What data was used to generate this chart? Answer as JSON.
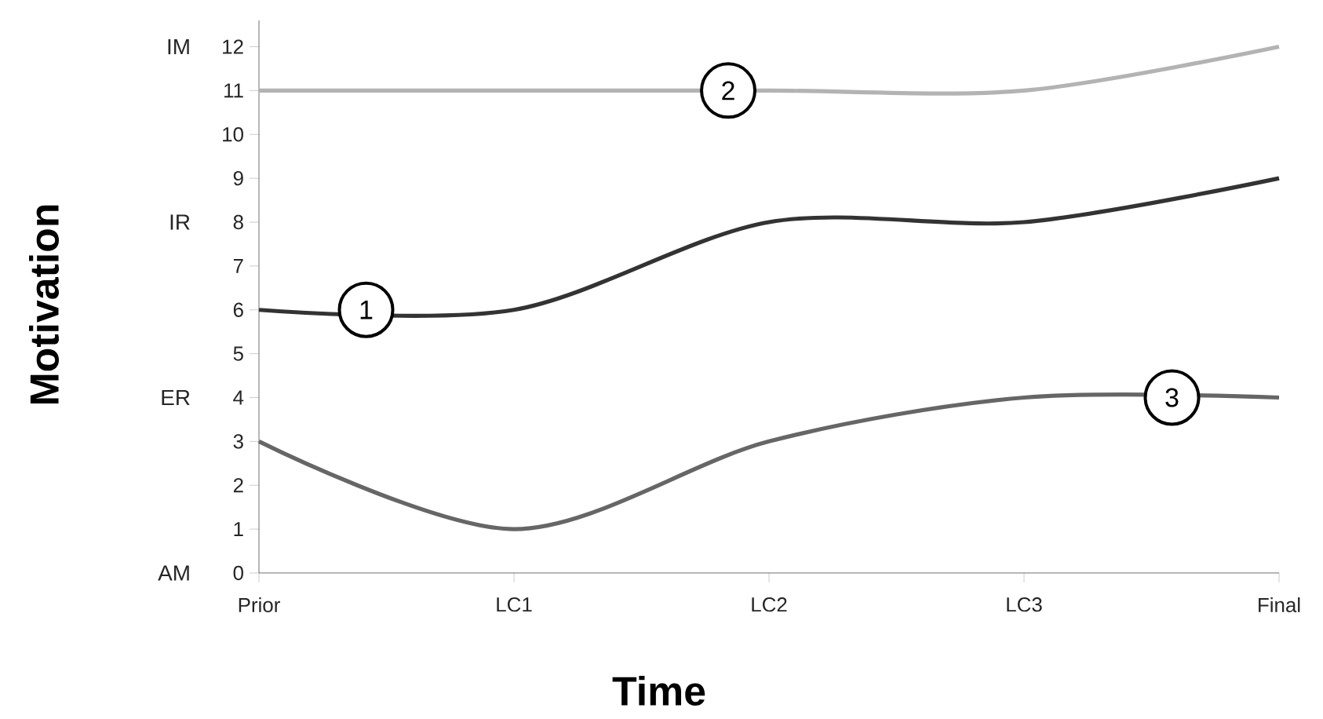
{
  "chart_data": {
    "type": "line",
    "xlabel": "Time",
    "ylabel": "Motivation",
    "categories": [
      "Prior",
      "LC1",
      "LC2",
      "LC3",
      "Final"
    ],
    "series": [
      {
        "color": "#333333",
        "values": [
          6,
          6,
          8,
          8,
          9
        ]
      },
      {
        "color": "#b3b3b3",
        "values": [
          11,
          11,
          11,
          11,
          12
        ]
      },
      {
        "color": "#666666",
        "values": [
          3,
          1,
          3,
          4,
          4
        ]
      }
    ],
    "ylim": [
      0,
      12.6
    ],
    "yticks": [
      0,
      1,
      2,
      3,
      4,
      5,
      6,
      7,
      8,
      9,
      10,
      11,
      12
    ],
    "annotations": [
      "IM",
      "IR",
      "ER",
      "AM",
      {
        "text": "1",
        "y": 6
      },
      {
        "text": "2",
        "y": 11
      },
      {
        "text": "3",
        "y": 4
      }
    ],
    "grid": false,
    "marker": "none",
    "line_style": "solid"
  }
}
